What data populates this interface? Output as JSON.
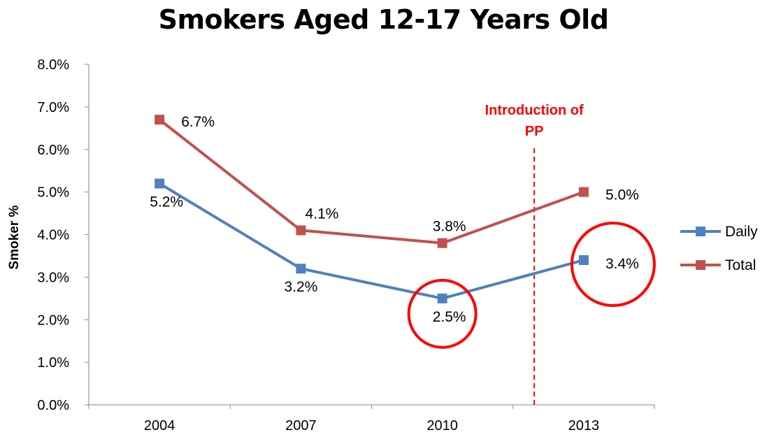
{
  "chart_data": {
    "type": "line",
    "title": "Smokers Aged 12-17 Years Old",
    "xlabel": "",
    "ylabel": "Smoker %",
    "categories": [
      "2004",
      "2007",
      "2010",
      "2013"
    ],
    "ylim": [
      0,
      8
    ],
    "yticks": [
      "0.0%",
      "1.0%",
      "2.0%",
      "3.0%",
      "4.0%",
      "5.0%",
      "6.0%",
      "7.0%",
      "8.0%"
    ],
    "grid": false,
    "legend_position": "right",
    "series": [
      {
        "name": "Daily",
        "color": "#4f81bd",
        "values": [
          5.2,
          3.2,
          2.5,
          3.4
        ],
        "labels": [
          "5.2%",
          "3.2%",
          "2.5%",
          "3.4%"
        ]
      },
      {
        "name": "Total",
        "color": "#c0504d",
        "values": [
          6.7,
          4.1,
          3.8,
          5.0
        ],
        "labels": [
          "6.7%",
          "4.1%",
          "3.8%",
          "5.0%"
        ]
      }
    ],
    "annotation": {
      "text_lines": [
        "Introduction of",
        "PP"
      ],
      "color": "#ff0000",
      "x_between": [
        "2010",
        "2013"
      ]
    },
    "highlight_circles": [
      {
        "series": "Daily",
        "category": "2010",
        "color": "#ff0000"
      },
      {
        "series": "Daily",
        "category": "2013",
        "color": "#ff0000"
      }
    ]
  }
}
